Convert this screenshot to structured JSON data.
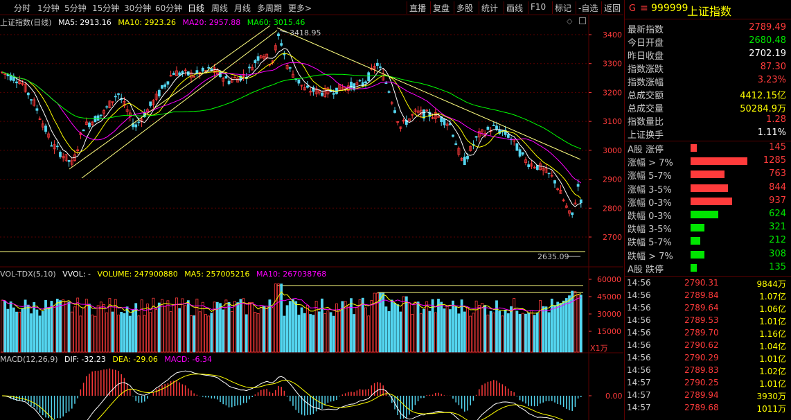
{
  "toolbar": {
    "left_items": [
      "分时",
      "1分钟",
      "5分钟",
      "15分钟",
      "30分钟",
      "60分钟",
      "日线",
      "周线",
      "月线",
      "多周期",
      "更多>"
    ],
    "active": "日线",
    "right_items": [
      "直播",
      "复盘",
      "多股",
      "统计",
      "画线",
      "F10",
      "标记",
      "-自选",
      "返回"
    ]
  },
  "main_legend": {
    "title": "上证指数(日线)",
    "ma5": "MA5: 2913.16",
    "ma10": "MA10: 2923.26",
    "ma20": "MA20: 2957.88",
    "ma60": "MA60: 3015.46",
    "high_label": "3418.95",
    "low_label": "2635.09"
  },
  "price_axis": [
    "3400",
    "3300",
    "3200",
    "3100",
    "3000",
    "2900",
    "2800",
    "2700"
  ],
  "vol_legend": {
    "title": "VOL-TDX(5,10)",
    "vvol": "VVOL: -",
    "volume": "VOLUME: 247900880",
    "ma5": "MA5: 257005216",
    "ma10": "MA10: 267038768"
  },
  "vol_axis": [
    "60000",
    "45000",
    "30000",
    "15000"
  ],
  "vol_unit": "X1万",
  "macd_legend": {
    "title": "MACD(12,26,9)",
    "dif": "DIF: -32.23",
    "dea": "DEA: -29.06",
    "macd": "MACD: -6.34"
  },
  "macd_axis": [
    "0.00"
  ],
  "colors": {
    "up": "#ff3b3b",
    "down": "#54d6f0",
    "ma5": "#ffffff",
    "ma10": "#ffff00",
    "ma20": "#ff00ff",
    "ma60": "#00ff00",
    "grid": "#5a0000"
  },
  "quote": {
    "code_prefix": "G",
    "menu_icon": "≡",
    "code": "999999",
    "name": "上证指数",
    "rows": [
      {
        "label": "最新指数",
        "value": "2789.49",
        "color": "#ff3b3b"
      },
      {
        "label": "今日开盘",
        "value": "2680.48",
        "color": "#00e600"
      },
      {
        "label": "昨日收盘",
        "value": "2702.19",
        "color": "#ffffff"
      },
      {
        "label": "指数涨跌",
        "value": "87.30",
        "color": "#ff3b3b"
      },
      {
        "label": "指数涨幅",
        "value": "3.23%",
        "color": "#ff3b3b"
      },
      {
        "label": "总成交额",
        "value": "4412.15亿",
        "color": "#ffff00"
      },
      {
        "label": "总成交量",
        "value": "50284.9万",
        "color": "#ffff00"
      },
      {
        "label": "指数量比",
        "value": "1.28",
        "color": "#ff3b3b"
      },
      {
        "label": "上证换手",
        "value": "1.11%",
        "color": "#ffffff"
      }
    ],
    "breadth": [
      {
        "label": "A股 涨停",
        "value": "145",
        "color": "#ff3b3b",
        "bar": 145
      },
      {
        "label": "涨幅 > 7%",
        "value": "1285",
        "color": "#ff3b3b",
        "bar": 1285
      },
      {
        "label": "涨幅 5-7%",
        "value": "763",
        "color": "#ff3b3b",
        "bar": 763
      },
      {
        "label": "涨幅 3-5%",
        "value": "844",
        "color": "#ff3b3b",
        "bar": 844
      },
      {
        "label": "涨幅 0-3%",
        "value": "937",
        "color": "#ff3b3b",
        "bar": 937
      },
      {
        "label": "跌幅 0-3%",
        "value": "624",
        "color": "#00e600",
        "bar": 624
      },
      {
        "label": "跌幅 3-5%",
        "value": "321",
        "color": "#00e600",
        "bar": 321
      },
      {
        "label": "跌幅 5-7%",
        "value": "212",
        "color": "#00e600",
        "bar": 212
      },
      {
        "label": "跌幅 > 7%",
        "value": "308",
        "color": "#00e600",
        "bar": 308
      },
      {
        "label": "A股 跌停",
        "value": "135",
        "color": "#00e600",
        "bar": 135
      }
    ],
    "ticks": [
      {
        "time": "14:56",
        "price": "2790.31",
        "vol": "9844万"
      },
      {
        "time": "14:56",
        "price": "2789.84",
        "vol": "1.07亿"
      },
      {
        "time": "14:56",
        "price": "2789.64",
        "vol": "1.06亿"
      },
      {
        "time": "14:56",
        "price": "2789.53",
        "vol": "1.01亿"
      },
      {
        "time": "14:56",
        "price": "2789.70",
        "vol": "1.16亿"
      },
      {
        "time": "14:56",
        "price": "2790.62",
        "vol": "1.04亿"
      },
      {
        "time": "14:56",
        "price": "2790.29",
        "vol": "1.01亿"
      },
      {
        "time": "14:56",
        "price": "2789.83",
        "vol": "1.02亿"
      },
      {
        "time": "14:57",
        "price": "2790.25",
        "vol": "1.01亿"
      },
      {
        "time": "14:57",
        "price": "2789.94",
        "vol": "3930万"
      },
      {
        "time": "14:57",
        "price": "2789.68",
        "vol": "1011万"
      }
    ]
  }
}
